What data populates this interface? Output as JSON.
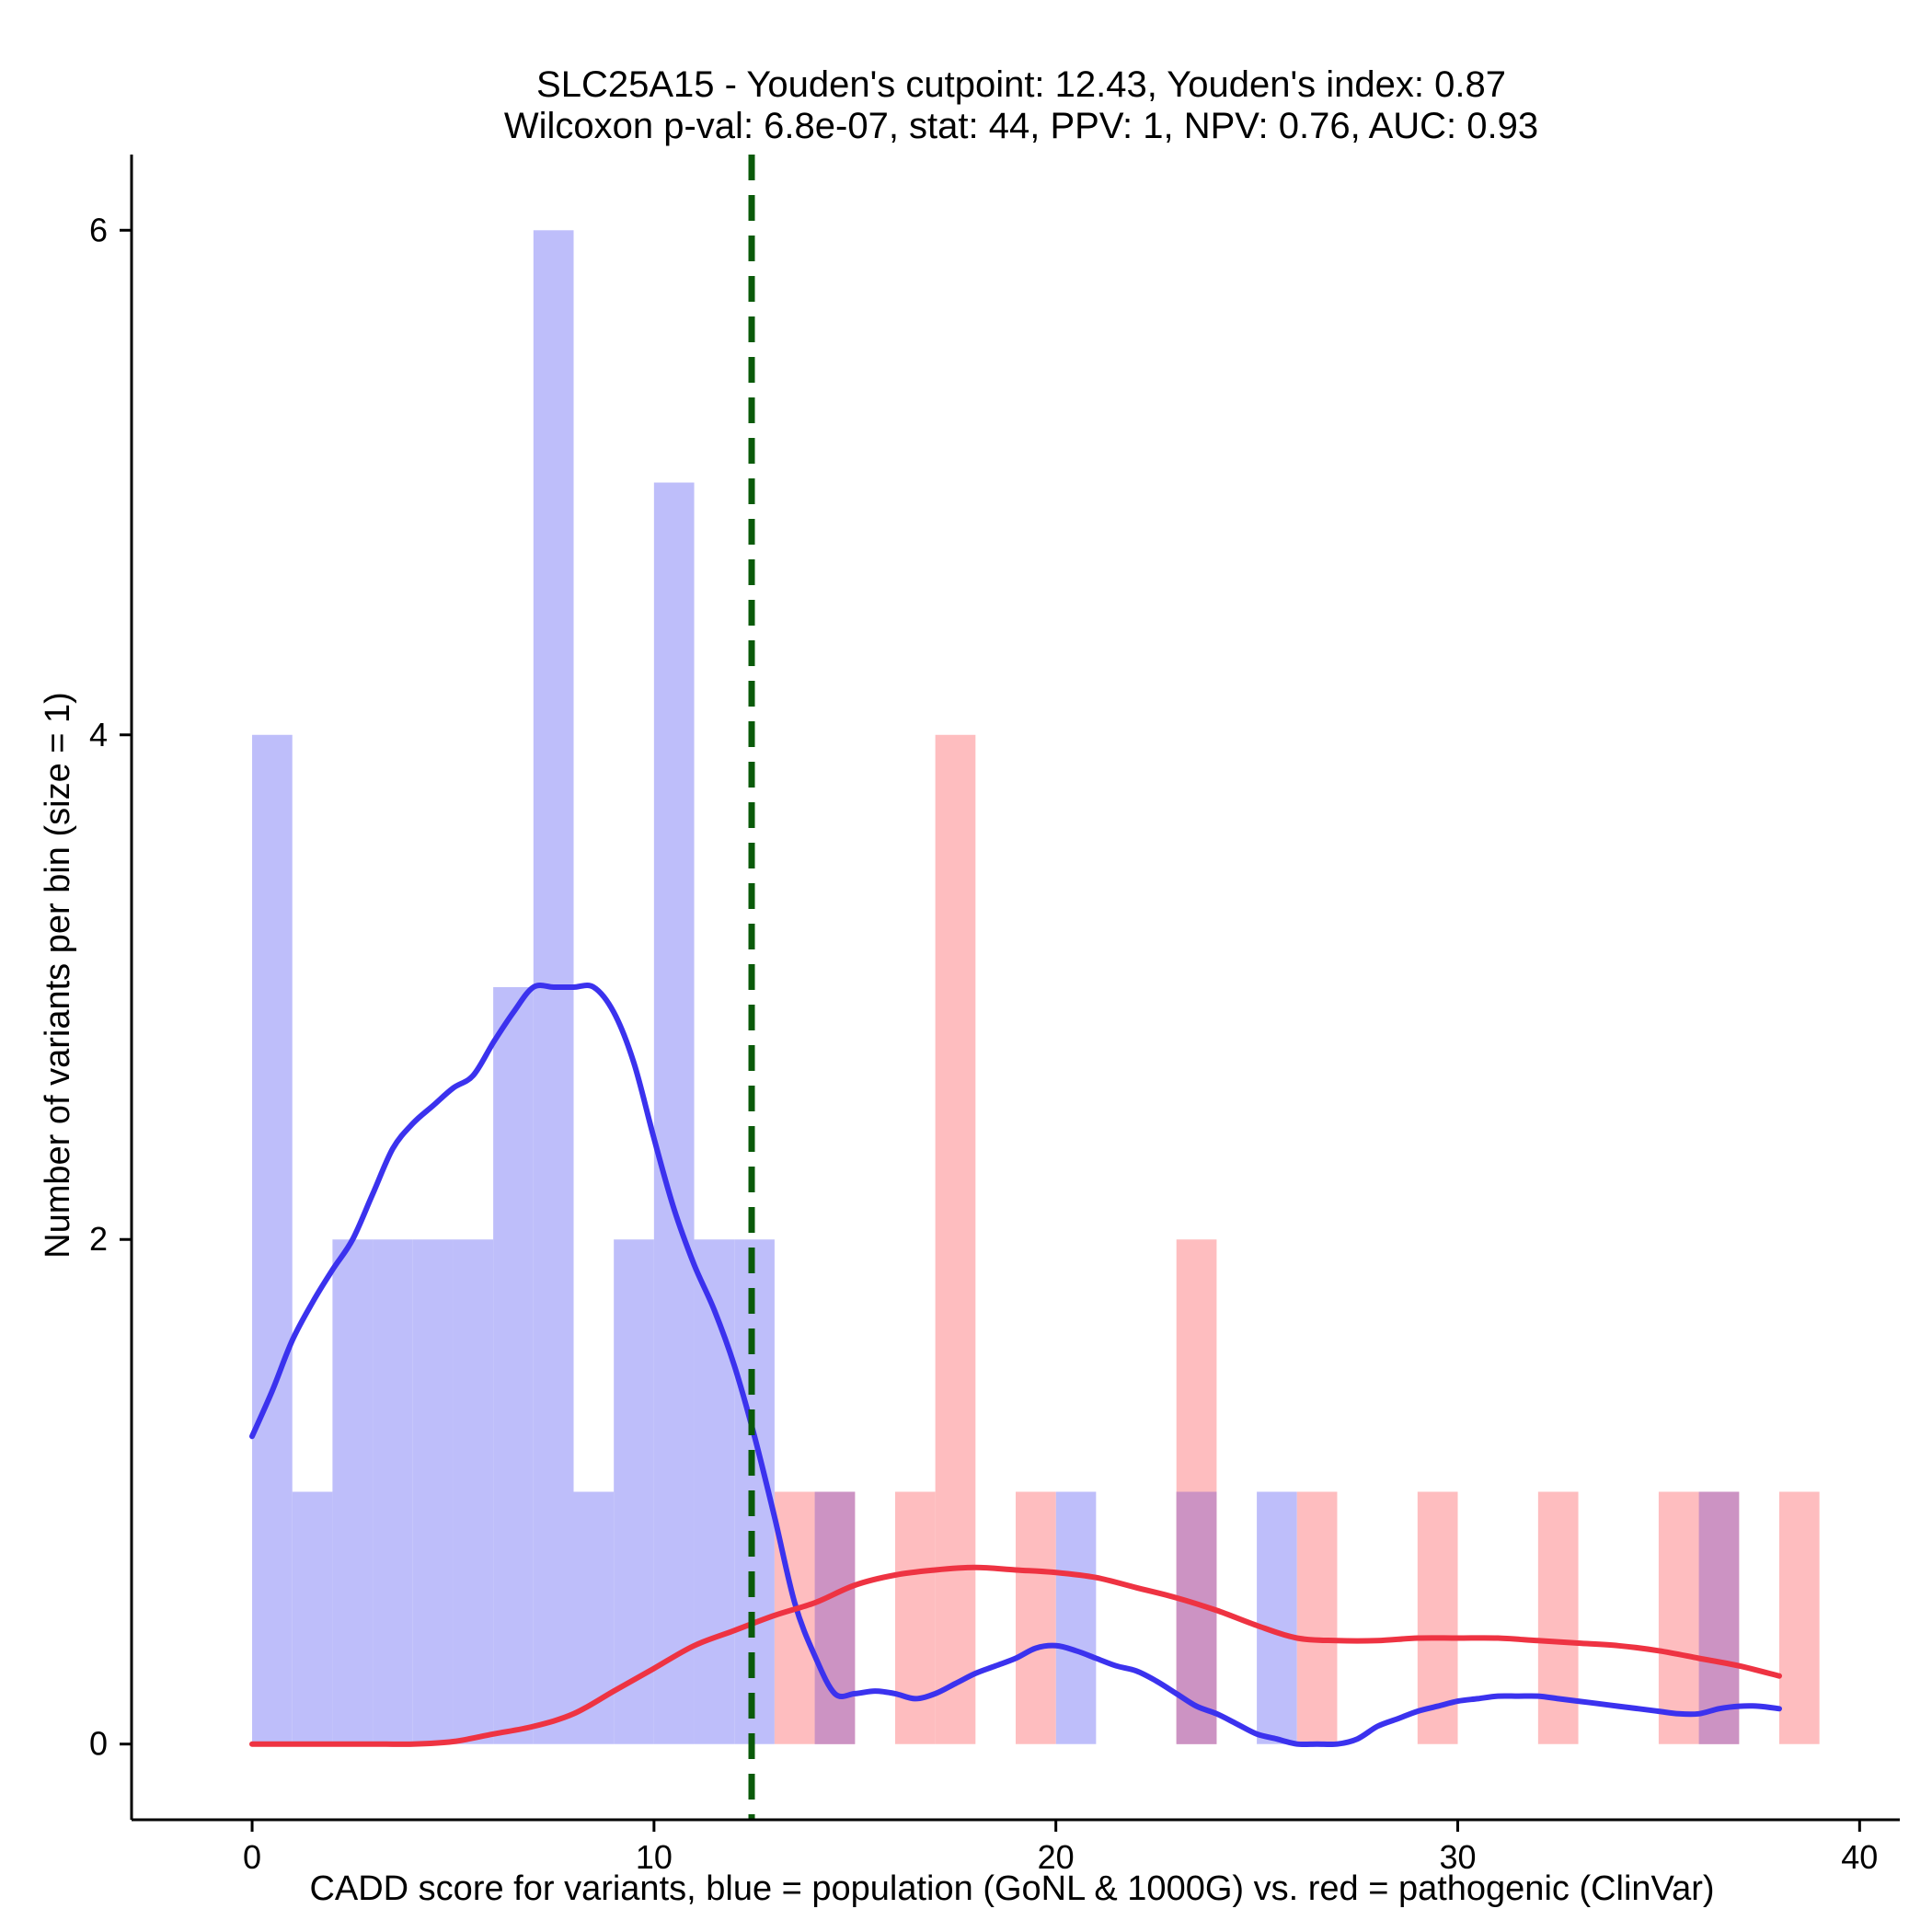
{
  "chart_data": {
    "type": "histogram",
    "title_line1": "SLC25A15 - Youden's cutpoint: 12.43, Youden's index: 0.87",
    "title_line2": "Wilcoxon p-val: 6.8e-07, stat: 44, PPV: 1, NPV: 0.76, AUC: 0.93",
    "xlabel": "CADD score for variants, blue = population (GoNL & 1000G) vs. red = pathogenic (ClinVar)",
    "ylabel": "Number of variants per bin (size = 1)",
    "xlim": [
      -3,
      41
    ],
    "ylim": [
      -0.3,
      6.3
    ],
    "xticks": [
      0,
      10,
      20,
      30,
      40
    ],
    "yticks": [
      0,
      2,
      4,
      6
    ],
    "bin_width": 1,
    "cutpoint": 12.43,
    "colors": {
      "population_bar": "#bebefa",
      "pathogenic_bar": "#febdbf",
      "overlap_bar": "#cc93c3",
      "population_line": "#3b32ee",
      "pathogenic_line": "#ee3342",
      "cutpoint_line": "#0a5a0a"
    },
    "series": [
      {
        "name": "population (GoNL & 1000G)",
        "bins": [
          {
            "x": 0,
            "count": 4
          },
          {
            "x": 1,
            "count": 1
          },
          {
            "x": 2,
            "count": 2
          },
          {
            "x": 3,
            "count": 2
          },
          {
            "x": 4,
            "count": 2
          },
          {
            "x": 5,
            "count": 2
          },
          {
            "x": 6,
            "count": 3
          },
          {
            "x": 7,
            "count": 6
          },
          {
            "x": 8,
            "count": 1
          },
          {
            "x": 9,
            "count": 2
          },
          {
            "x": 10,
            "count": 5
          },
          {
            "x": 11,
            "count": 2
          },
          {
            "x": 12,
            "count": 2
          },
          {
            "x": 14,
            "count": 1
          },
          {
            "x": 20,
            "count": 1
          },
          {
            "x": 23,
            "count": 1
          },
          {
            "x": 25,
            "count": 1
          },
          {
            "x": 36,
            "count": 1
          }
        ],
        "density_x": [
          0,
          0.5,
          1,
          1.5,
          2,
          2.5,
          3,
          3.5,
          4,
          4.5,
          5,
          5.5,
          6,
          6.5,
          7,
          7.5,
          8,
          8.5,
          9,
          9.5,
          10,
          10.5,
          11,
          11.5,
          12,
          12.5,
          13,
          13.5,
          14,
          14.5,
          15,
          15.5,
          16,
          16.5,
          17,
          17.5,
          18,
          18.5,
          19,
          19.5,
          20,
          20.5,
          21,
          21.5,
          22,
          22.5,
          23,
          23.5,
          24,
          24.5,
          25,
          25.5,
          26,
          26.5,
          27,
          27.5,
          28,
          28.5,
          29,
          29.5,
          30,
          30.5,
          31,
          31.5,
          32,
          32.5,
          33,
          33.5,
          34,
          34.5,
          35,
          35.5,
          36,
          36.5,
          37,
          37.5,
          38
        ],
        "density_y": [
          1.22,
          1.4,
          1.6,
          1.75,
          1.88,
          2.0,
          2.18,
          2.36,
          2.46,
          2.53,
          2.6,
          2.65,
          2.78,
          2.9,
          3.0,
          3.0,
          3.0,
          3.0,
          2.9,
          2.7,
          2.4,
          2.12,
          1.9,
          1.72,
          1.5,
          1.22,
          0.9,
          0.56,
          0.35,
          0.2,
          0.2,
          0.21,
          0.2,
          0.18,
          0.2,
          0.24,
          0.28,
          0.31,
          0.34,
          0.38,
          0.39,
          0.37,
          0.34,
          0.31,
          0.29,
          0.25,
          0.2,
          0.15,
          0.12,
          0.08,
          0.04,
          0.02,
          0.0,
          0.0,
          0.0,
          0.02,
          0.07,
          0.1,
          0.13,
          0.15,
          0.17,
          0.18,
          0.19,
          0.19,
          0.19,
          0.18,
          0.17,
          0.16,
          0.15,
          0.14,
          0.13,
          0.12,
          0.12,
          0.14,
          0.15,
          0.15,
          0.14
        ]
      },
      {
        "name": "pathogenic (ClinVar)",
        "bins": [
          {
            "x": 13,
            "count": 1
          },
          {
            "x": 14,
            "count": 1
          },
          {
            "x": 16,
            "count": 1
          },
          {
            "x": 17,
            "count": 4
          },
          {
            "x": 19,
            "count": 1
          },
          {
            "x": 23,
            "count": 2
          },
          {
            "x": 26,
            "count": 1
          },
          {
            "x": 29,
            "count": 1
          },
          {
            "x": 32,
            "count": 1
          },
          {
            "x": 35,
            "count": 1
          },
          {
            "x": 36,
            "count": 1
          },
          {
            "x": 38,
            "count": 1
          }
        ],
        "density_x": [
          0,
          1,
          2,
          3,
          4,
          5,
          6,
          7,
          8,
          9,
          10,
          11,
          12,
          13,
          14,
          15,
          16,
          17,
          18,
          19,
          20,
          21,
          22,
          23,
          24,
          25,
          26,
          27,
          28,
          29,
          30,
          31,
          32,
          33,
          34,
          35,
          36,
          37,
          38
        ],
        "density_y": [
          0.0,
          0.0,
          0.0,
          0.0,
          0.0,
          0.01,
          0.04,
          0.07,
          0.12,
          0.21,
          0.3,
          0.39,
          0.45,
          0.51,
          0.56,
          0.63,
          0.67,
          0.69,
          0.7,
          0.69,
          0.68,
          0.66,
          0.62,
          0.58,
          0.53,
          0.47,
          0.42,
          0.41,
          0.41,
          0.42,
          0.42,
          0.42,
          0.41,
          0.4,
          0.39,
          0.37,
          0.34,
          0.31,
          0.27
        ]
      }
    ]
  }
}
